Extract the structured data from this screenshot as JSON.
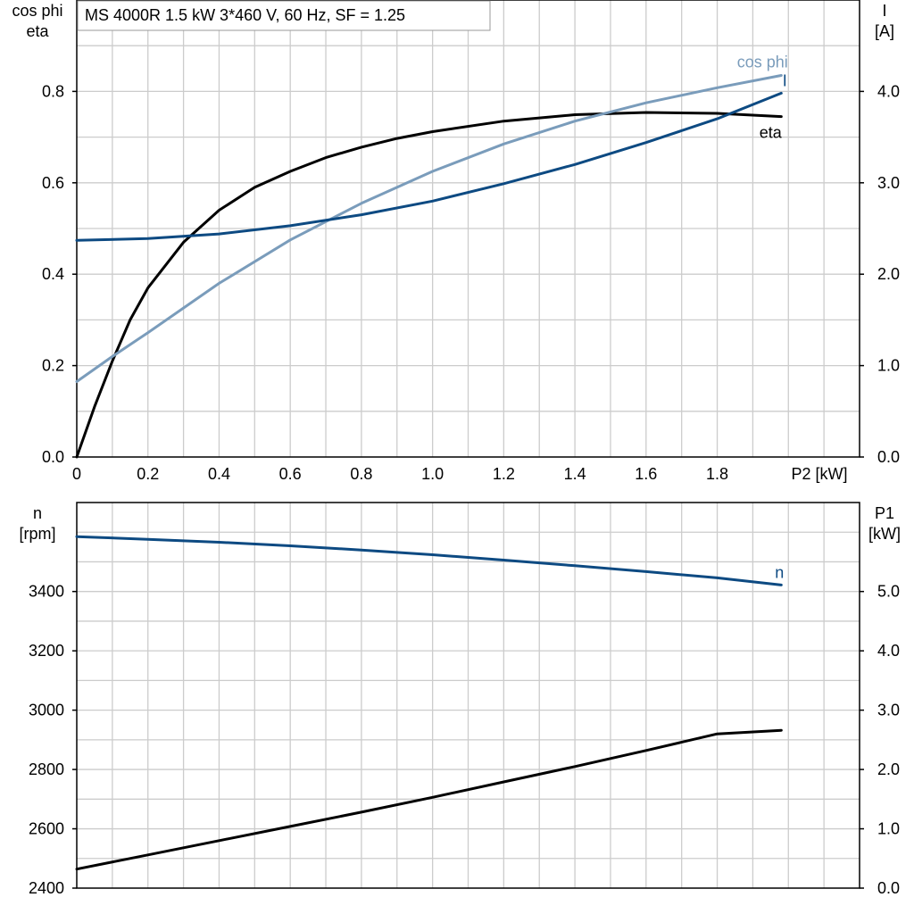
{
  "chart_data": [
    {
      "type": "line",
      "title": "MS 4000R   1.5 kW   3*460 V, 60 Hz, SF = 1.25",
      "xlabel": "P2 [kW]",
      "ylabel_left": [
        "cos phi",
        "eta"
      ],
      "ylabel_right": [
        "I",
        "[A]"
      ],
      "xlim": [
        0,
        2.2
      ],
      "ylim_left": [
        0,
        1.0
      ],
      "ylim_right": [
        0,
        5.0
      ],
      "x_ticks": [
        "0",
        "0.2",
        "0.4",
        "0.6",
        "0.8",
        "1.0",
        "1.2",
        "1.4",
        "1.6",
        "1.8"
      ],
      "y_ticks_left": [
        "0.0",
        "0.2",
        "0.4",
        "0.6",
        "0.8"
      ],
      "y_ticks_right": [
        "0.0",
        "1.0",
        "2.0",
        "3.0",
        "4.0"
      ],
      "grid": true,
      "series": [
        {
          "name": "eta",
          "axis": "left",
          "color": "#000000",
          "x": [
            0,
            0.05,
            0.1,
            0.15,
            0.2,
            0.3,
            0.4,
            0.5,
            0.6,
            0.7,
            0.8,
            0.9,
            1.0,
            1.2,
            1.4,
            1.6,
            1.8,
            1.98
          ],
          "y": [
            0.0,
            0.11,
            0.21,
            0.3,
            0.37,
            0.47,
            0.54,
            0.59,
            0.625,
            0.655,
            0.678,
            0.697,
            0.712,
            0.735,
            0.749,
            0.754,
            0.752,
            0.745
          ]
        },
        {
          "name": "cos phi",
          "axis": "left",
          "color": "#7a9cbb",
          "x": [
            0,
            0.1,
            0.2,
            0.4,
            0.6,
            0.8,
            1.0,
            1.2,
            1.4,
            1.6,
            1.8,
            1.98
          ],
          "y": [
            0.165,
            0.22,
            0.272,
            0.38,
            0.475,
            0.555,
            0.625,
            0.685,
            0.735,
            0.775,
            0.808,
            0.835
          ]
        },
        {
          "name": "I",
          "axis": "right",
          "color": "#0d4a82",
          "x": [
            0,
            0.2,
            0.4,
            0.6,
            0.8,
            1.0,
            1.2,
            1.4,
            1.6,
            1.8,
            1.98
          ],
          "y": [
            2.37,
            2.39,
            2.44,
            2.53,
            2.65,
            2.8,
            2.99,
            3.2,
            3.44,
            3.7,
            3.98
          ]
        }
      ]
    },
    {
      "type": "line",
      "ylabel_left": [
        "n",
        "[rpm]"
      ],
      "ylabel_right": [
        "P1",
        "[kW]"
      ],
      "xlim": [
        0,
        2.2
      ],
      "ylim_left": [
        2400,
        3700
      ],
      "ylim_right": [
        0.0,
        6.5
      ],
      "y_ticks_left": [
        "2400",
        "2600",
        "2800",
        "3000",
        "3200",
        "3400"
      ],
      "y_ticks_right": [
        "0.0",
        "1.0",
        "2.0",
        "3.0",
        "4.0",
        "5.0"
      ],
      "grid": true,
      "series": [
        {
          "name": "n",
          "axis": "left",
          "color": "#0d4a82",
          "x": [
            0,
            0.2,
            0.4,
            0.6,
            0.8,
            1.0,
            1.2,
            1.4,
            1.6,
            1.8,
            1.98
          ],
          "y": [
            3585,
            3576,
            3566,
            3554,
            3540,
            3524,
            3506,
            3487,
            3467,
            3446,
            3422
          ]
        },
        {
          "axis": "right",
          "color": "#000000",
          "x": [
            0,
            0.2,
            0.4,
            0.6,
            0.8,
            1.0,
            1.2,
            1.4,
            1.6,
            1.8,
            1.98
          ],
          "y": [
            0.32,
            0.56,
            0.8,
            1.04,
            1.28,
            1.53,
            1.79,
            2.05,
            2.32,
            2.6,
            2.66
          ]
        }
      ]
    }
  ]
}
